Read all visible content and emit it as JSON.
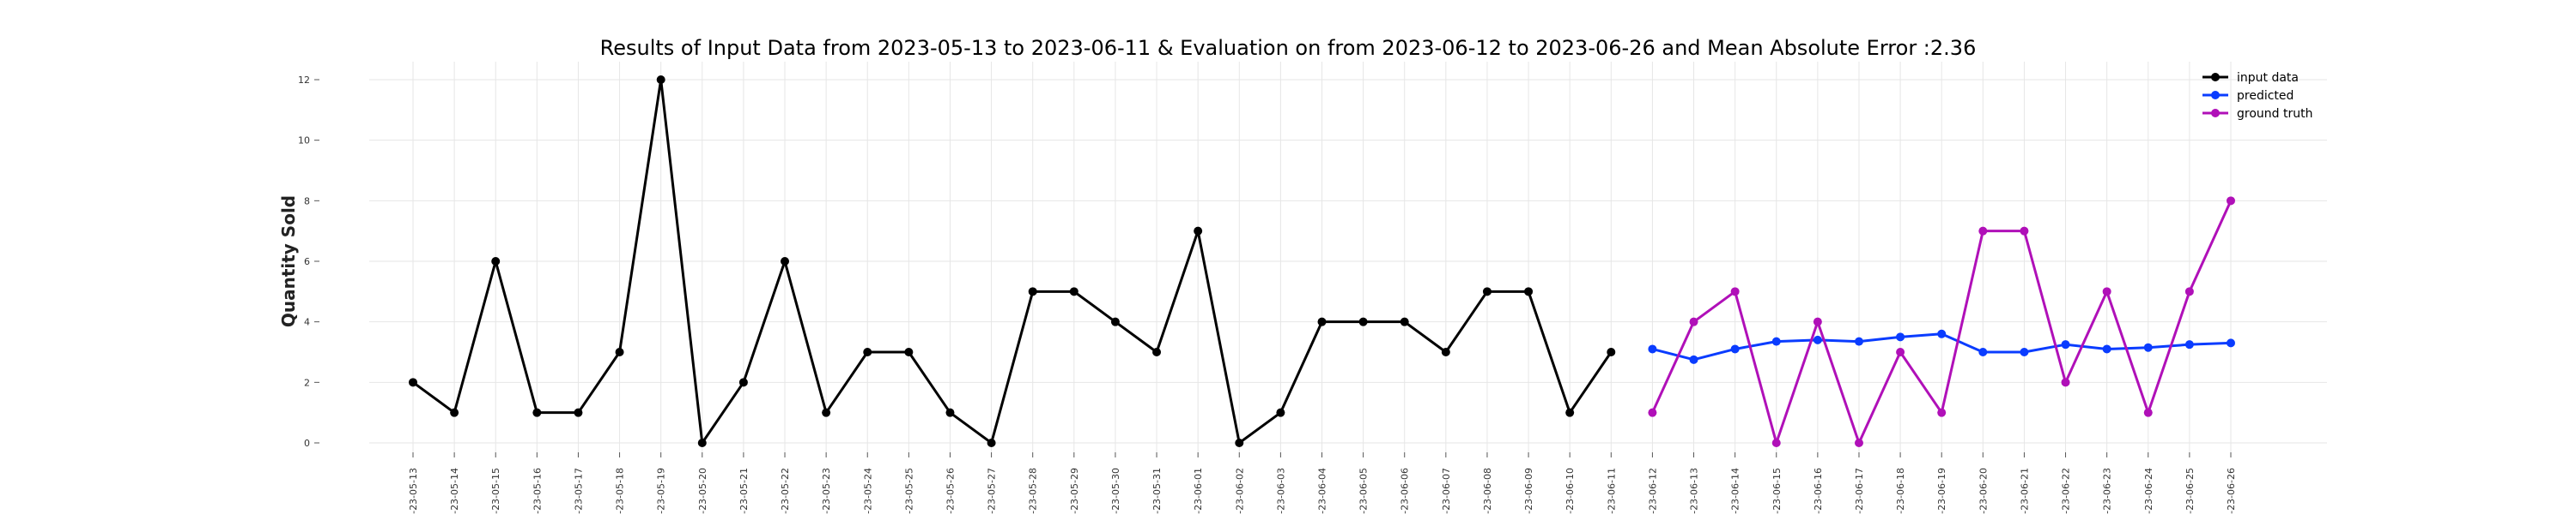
{
  "chart_data": {
    "type": "line",
    "title": "Results of Input Data from 2023-05-13 to 2023-06-11 & Evaluation on from 2023-06-12 to 2023-06-26 and Mean Absolute Error  :2.36",
    "xlabel": "",
    "ylabel": "Quantity Sold",
    "ylim": [
      0,
      12
    ],
    "yticks": [
      "0",
      "2",
      "4",
      "6",
      "8",
      "10",
      "12"
    ],
    "grid": true,
    "legend_position": "top-right",
    "x": [
      "2023-05-13",
      "2023-05-14",
      "2023-05-15",
      "2023-05-16",
      "2023-05-17",
      "2023-05-18",
      "2023-05-19",
      "2023-05-20",
      "2023-05-21",
      "2023-05-22",
      "2023-05-23",
      "2023-05-24",
      "2023-05-25",
      "2023-05-26",
      "2023-05-27",
      "2023-05-28",
      "2023-05-29",
      "2023-05-30",
      "2023-05-31",
      "2023-06-01",
      "2023-06-02",
      "2023-06-03",
      "2023-06-04",
      "2023-06-05",
      "2023-06-06",
      "2023-06-07",
      "2023-06-08",
      "2023-06-09",
      "2023-06-10",
      "2023-06-11",
      "2023-06-12",
      "2023-06-13",
      "2023-06-14",
      "2023-06-15",
      "2023-06-16",
      "2023-06-17",
      "2023-06-18",
      "2023-06-19",
      "2023-06-20",
      "2023-06-21",
      "2023-06-22",
      "2023-06-23",
      "2023-06-24",
      "2023-06-25",
      "2023-06-26"
    ],
    "xtick_labels": [
      "-23-05-13",
      "-23-05-14",
      "-23-05-15",
      "-23-05-16",
      "-23-05-17",
      "-23-05-18",
      "-23-05-19",
      "-23-05-20",
      "-23-05-21",
      "-23-05-22",
      "-23-05-23",
      "-23-05-24",
      "-23-05-25",
      "-23-05-26",
      "-23-05-27",
      "-23-05-28",
      "-23-05-29",
      "-23-05-30",
      "-23-05-31",
      "-23-06-01",
      "-23-06-02",
      "-23-06-03",
      "-23-06-04",
      "-23-06-05",
      "-23-06-06",
      "-23-06-07",
      "-23-06-08",
      "-23-06-09",
      "-23-06-10",
      "-23-06-11",
      "-23-06-12",
      "-23-06-13",
      "-23-06-14",
      "-23-06-15",
      "-23-06-16",
      "-23-06-17",
      "-23-06-18",
      "-23-06-19",
      "-23-06-20",
      "-23-06-21",
      "-23-06-22",
      "-23-06-23",
      "-23-06-24",
      "-23-06-25",
      "-23-06-26"
    ],
    "series": [
      {
        "name": "input data",
        "color": "#000000",
        "x": [
          "2023-05-13",
          "2023-05-14",
          "2023-05-15",
          "2023-05-16",
          "2023-05-17",
          "2023-05-18",
          "2023-05-19",
          "2023-05-20",
          "2023-05-21",
          "2023-05-22",
          "2023-05-23",
          "2023-05-24",
          "2023-05-25",
          "2023-05-26",
          "2023-05-27",
          "2023-05-28",
          "2023-05-29",
          "2023-05-30",
          "2023-05-31",
          "2023-06-01",
          "2023-06-02",
          "2023-06-03",
          "2023-06-04",
          "2023-06-05",
          "2023-06-06",
          "2023-06-07",
          "2023-06-08",
          "2023-06-09",
          "2023-06-10",
          "2023-06-11"
        ],
        "values": [
          2,
          1,
          6,
          1,
          1,
          3,
          12,
          0,
          2,
          6,
          1,
          3,
          3,
          1,
          0,
          5,
          5,
          4,
          3,
          7,
          0,
          1,
          4,
          4,
          4,
          3,
          5,
          5,
          1,
          3
        ]
      },
      {
        "name": "predicted",
        "color": "#0a3cff",
        "x": [
          "2023-06-12",
          "2023-06-13",
          "2023-06-14",
          "2023-06-15",
          "2023-06-16",
          "2023-06-17",
          "2023-06-18",
          "2023-06-19",
          "2023-06-20",
          "2023-06-21",
          "2023-06-22",
          "2023-06-23",
          "2023-06-24",
          "2023-06-25",
          "2023-06-26"
        ],
        "values": [
          3.1,
          2.75,
          3.1,
          3.35,
          3.4,
          3.35,
          3.5,
          3.6,
          3.0,
          3.0,
          3.25,
          3.1,
          3.15,
          3.25,
          3.3
        ]
      },
      {
        "name": "ground truth",
        "color": "#b010b8",
        "x": [
          "2023-06-12",
          "2023-06-13",
          "2023-06-14",
          "2023-06-15",
          "2023-06-16",
          "2023-06-17",
          "2023-06-18",
          "2023-06-19",
          "2023-06-20",
          "2023-06-21",
          "2023-06-22",
          "2023-06-23",
          "2023-06-24",
          "2023-06-25",
          "2023-06-26"
        ],
        "values": [
          1,
          4,
          5,
          0,
          4,
          0,
          3,
          1,
          7,
          7,
          2,
          5,
          1,
          5,
          8
        ]
      }
    ]
  }
}
